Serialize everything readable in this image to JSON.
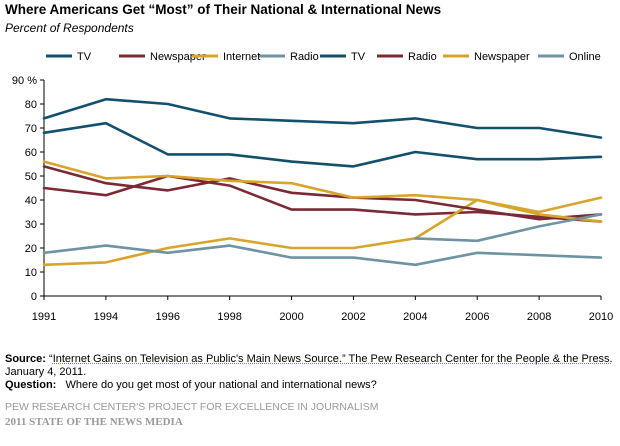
{
  "chart_data": {
    "type": "line",
    "title": "Where Americans Get “Most” of Their National & International News",
    "subtitle": "Percent of Respondents",
    "x": [
      "1991",
      "1994",
      "1996",
      "1998",
      "2000",
      "2002",
      "2004",
      "2006",
      "2008",
      "2010"
    ],
    "ylim": [
      0,
      90
    ],
    "yticks": [
      0,
      10,
      20,
      30,
      40,
      50,
      60,
      70,
      80,
      90
    ],
    "ytick_labels": [
      "0",
      "10",
      "20",
      "30",
      "40",
      "50",
      "60",
      "70",
      "80",
      "90 %"
    ],
    "grid": false,
    "legend_position": "top",
    "series": [
      {
        "name": "TV",
        "color": "#13506d",
        "values": [
          68,
          72,
          59,
          59,
          56,
          54,
          60,
          57,
          57,
          58
        ]
      },
      {
        "name": "Newspaper",
        "color": "#7b2a35",
        "values": [
          45,
          42,
          50,
          46,
          36,
          36,
          34,
          35,
          33,
          31
        ]
      },
      {
        "name": "Internet",
        "color": "#d8a42c",
        "values": [
          13,
          14,
          20,
          24,
          20,
          20,
          24,
          40,
          35,
          41
        ]
      },
      {
        "name": "Radio",
        "color": "#6e93a3",
        "values": [
          18,
          21,
          18,
          21,
          16,
          16,
          13,
          18,
          17,
          16
        ]
      },
      {
        "name": "TV",
        "color": "#13506d",
        "values": [
          74,
          82,
          80,
          74,
          73,
          72,
          74,
          70,
          70,
          66
        ]
      },
      {
        "name": "Radio",
        "color": "#7b2a35",
        "values": [
          54,
          47,
          44,
          49,
          43,
          41,
          40,
          36,
          32,
          34
        ]
      },
      {
        "name": "Newspaper",
        "color": "#d8a42c",
        "values": [
          56,
          49,
          50,
          48,
          47,
          41,
          42,
          40,
          34,
          31
        ]
      },
      {
        "name": "Online",
        "color": "#6e93a3",
        "values": [
          null,
          null,
          null,
          null,
          null,
          null,
          24,
          23,
          29,
          34
        ]
      }
    ]
  },
  "source": {
    "label": "Source:",
    "quote_open": "“",
    "title": "Internet Gains on Television as Public's Main News Source.” The Pew Research Center for the People & the Press.",
    "date": "January 4, 2011."
  },
  "question": {
    "label": "Question:",
    "text": "Where do you get most of your national and international news?"
  },
  "credits": {
    "line1": "PEW RESEARCH CENTER'S PROJECT FOR EXCELLENCE IN JOURNALISM",
    "line2": "2011 STATE OF THE NEWS MEDIA"
  }
}
